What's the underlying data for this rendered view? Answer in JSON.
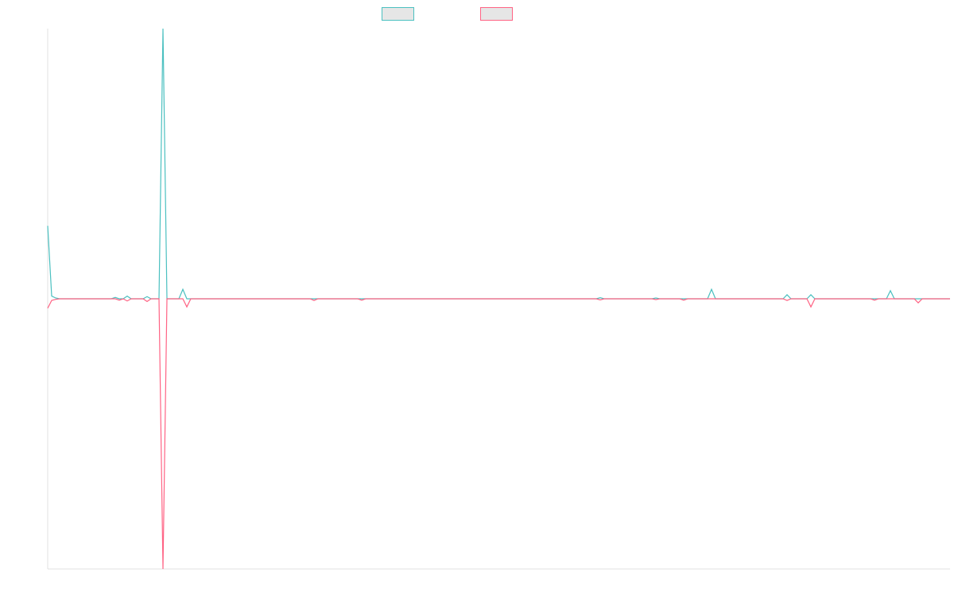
{
  "chart_data": {
    "type": "line",
    "ylim": [
      -100,
      100
    ],
    "series": [
      {
        "color": "#4bc0c0",
        "values": [
          27,
          1,
          0.3,
          0,
          0,
          0,
          0,
          0,
          0,
          0,
          0,
          0,
          0,
          0,
          0,
          0,
          0,
          0.5,
          0,
          0,
          1,
          0,
          0,
          0,
          0,
          0.8,
          0,
          0,
          0,
          100,
          0,
          0,
          0,
          0,
          3.5,
          0,
          0,
          0,
          0,
          0,
          0,
          0,
          0,
          0,
          0,
          0,
          0,
          0,
          0,
          0,
          0,
          0,
          0,
          0,
          0,
          0,
          0,
          0,
          0,
          0,
          0,
          0,
          0,
          0,
          0,
          0,
          0,
          0,
          0,
          0,
          0,
          0,
          0,
          0,
          0,
          0,
          0,
          0,
          0,
          0,
          0,
          0,
          0,
          0,
          0,
          0,
          0,
          0,
          0,
          0,
          0,
          0,
          0,
          0,
          0,
          0,
          0,
          0,
          0,
          0,
          0,
          0,
          0,
          0,
          0,
          0,
          0,
          0,
          0,
          0,
          0,
          0,
          0,
          0,
          0,
          0,
          0,
          0,
          0,
          0,
          0,
          0,
          0,
          0,
          0,
          0,
          0,
          0,
          0,
          0,
          0,
          0,
          0,
          0,
          0,
          0,
          0,
          0,
          0,
          0.4,
          0,
          0,
          0,
          0,
          0,
          0,
          0,
          0,
          0,
          0,
          0,
          0,
          0,
          0.3,
          0,
          0,
          0,
          0,
          0,
          0,
          0,
          0,
          0,
          0,
          0,
          0,
          0,
          3.5,
          0,
          0,
          0,
          0,
          0,
          0,
          0,
          0,
          0,
          0,
          0,
          0,
          0,
          0,
          0,
          0,
          0,
          0,
          1.5,
          0,
          0,
          0,
          0,
          0,
          1.5,
          0,
          0,
          0,
          0,
          0,
          0,
          0,
          0,
          0,
          0,
          0,
          0,
          0,
          0,
          0,
          0,
          0,
          0,
          0,
          3,
          0,
          0,
          0,
          0,
          0,
          0,
          0,
          0,
          0,
          0,
          0,
          0,
          0,
          0,
          0
        ]
      },
      {
        "color": "#ff6384",
        "values": [
          -3.5,
          -0.6,
          -0.2,
          0,
          0,
          0,
          0,
          0,
          0,
          0,
          0,
          0,
          0,
          0,
          0,
          0,
          0,
          0,
          -0.5,
          0,
          -0.8,
          0,
          0,
          0,
          0,
          -1,
          0,
          0,
          0,
          -100,
          0,
          0,
          0,
          0,
          0,
          -3,
          0,
          0,
          0,
          0,
          0,
          0,
          0,
          0,
          0,
          0,
          0,
          0,
          0,
          0,
          0,
          0,
          0,
          0,
          0,
          0,
          0,
          0,
          0,
          0,
          0,
          0,
          0,
          0,
          0,
          0,
          0,
          -0.6,
          0,
          0,
          0,
          0,
          0,
          0,
          0,
          0,
          0,
          0,
          0,
          -0.5,
          0,
          0,
          0,
          0,
          0,
          0,
          0,
          0,
          0,
          0,
          0,
          0,
          0,
          0,
          0,
          0,
          0,
          0,
          0,
          0,
          0,
          0,
          0,
          0,
          0,
          0,
          0,
          0,
          0,
          0,
          0,
          0,
          0,
          0,
          0,
          0,
          0,
          0,
          0,
          0,
          0,
          0,
          0,
          0,
          0,
          0,
          0,
          0,
          0,
          0,
          0,
          0,
          0,
          0,
          0,
          0,
          0,
          0,
          0,
          -0.4,
          0,
          0,
          0,
          0,
          0,
          0,
          0,
          0,
          0,
          0,
          0,
          0,
          0,
          -0.3,
          0,
          0,
          0,
          0,
          0,
          0,
          -0.5,
          0,
          0,
          0,
          0,
          0,
          0,
          0,
          0,
          0,
          0,
          0,
          0,
          0,
          0,
          0,
          0,
          0,
          0,
          0,
          0,
          0,
          0,
          0,
          0,
          0,
          -0.6,
          0,
          0,
          0,
          0,
          0,
          -3,
          0,
          0,
          0,
          0,
          0,
          0,
          0,
          0,
          0,
          0,
          0,
          0,
          0,
          0,
          0,
          -0.5,
          0,
          0,
          0,
          0,
          0,
          0,
          0,
          0,
          0,
          0,
          -1.5,
          0,
          0,
          0,
          0,
          0,
          0,
          0,
          0
        ]
      }
    ]
  }
}
